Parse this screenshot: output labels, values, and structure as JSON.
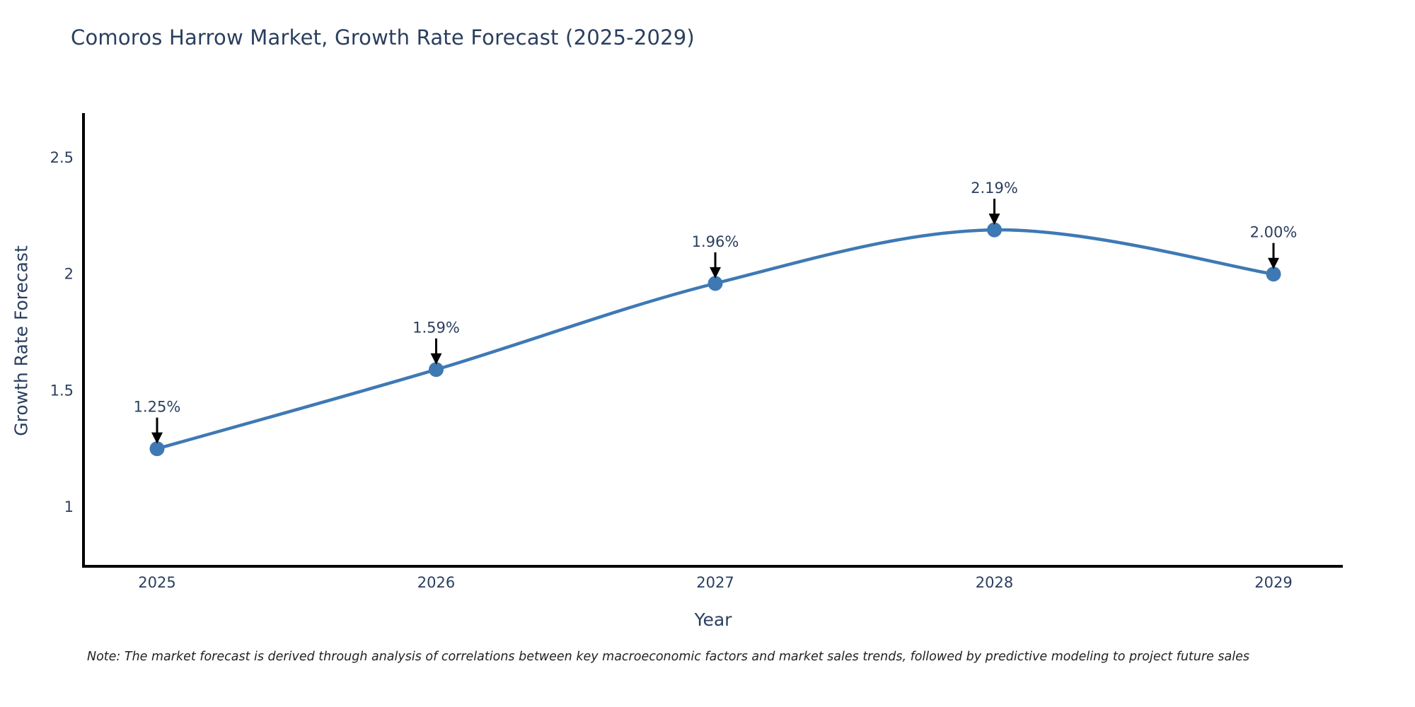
{
  "title": "Comoros Harrow Market, Growth Rate Forecast (2025-2029)",
  "note": "Note: The market forecast is derived through analysis of correlations between key macroeconomic factors and market sales trends, followed by predictive modeling to project future sales",
  "chart_data": {
    "type": "line",
    "title": "Comoros Harrow Market, Growth Rate Forecast (2025-2029)",
    "x": [
      "2025",
      "2026",
      "2027",
      "2028",
      "2029"
    ],
    "series": [
      {
        "name": "Growth Rate Forecast",
        "values": [
          1.25,
          1.59,
          1.96,
          2.19,
          2.0
        ]
      }
    ],
    "point_labels": [
      "1.25%",
      "1.59%",
      "1.96%",
      "2.19%",
      "2.00%"
    ],
    "xlabel": "Year",
    "ylabel": "Growth Rate Forecast",
    "ytick_labels": [
      "1",
      "1.5",
      "2",
      "2.5"
    ],
    "yticks": [
      1,
      1.5,
      2,
      2.5
    ],
    "ylim": [
      0.74,
      2.69
    ],
    "grid": false,
    "legend": "none",
    "line_shape": "spline",
    "colors": {
      "line": "#3e79b4",
      "marker": "#3e79b4",
      "axis": "#000000",
      "tick_text": "#2a3f5f",
      "annotation_arrow": "#000000",
      "note_text": "#222222"
    }
  }
}
